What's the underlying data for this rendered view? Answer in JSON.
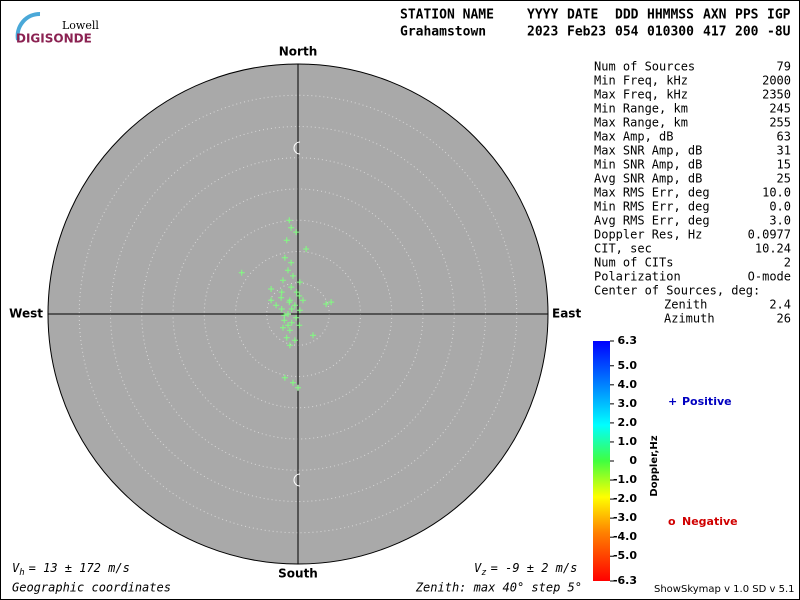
{
  "logo": {
    "top": "Lowell",
    "bottom": "DIGISONDE"
  },
  "header": {
    "columns": [
      {
        "label": "STATION NAME",
        "value": "Grahamstown"
      },
      {
        "label": "YYYY",
        "value": "2023"
      },
      {
        "label": "DATE",
        "value": "Feb23"
      },
      {
        "label": "DDD",
        "value": "054"
      },
      {
        "label": "HHMMSS",
        "value": "010300"
      },
      {
        "label": "AXN",
        "value": "417"
      },
      {
        "label": "PPS",
        "value": "200"
      },
      {
        "label": "IGP",
        "value": "-8U"
      }
    ]
  },
  "stats": [
    [
      "Num of Sources",
      "79"
    ],
    [
      "Min Freq, kHz",
      "2000"
    ],
    [
      "Max Freq, kHz",
      "2350"
    ],
    [
      "Min Range, km",
      "245"
    ],
    [
      "Max Range, km",
      "255"
    ],
    [
      "Max Amp, dB",
      "63"
    ],
    [
      "Max SNR Amp, dB",
      "31"
    ],
    [
      "Min SNR Amp, dB",
      "15"
    ],
    [
      "Avg SNR Amp, dB",
      "25"
    ],
    [
      "Max RMS Err, deg",
      "10.0"
    ],
    [
      "Min RMS Err, deg",
      "0.0"
    ],
    [
      "Avg RMS Err, deg",
      "3.0"
    ],
    [
      "Doppler Res, Hz",
      "0.0977"
    ],
    [
      "CIT, sec",
      "10.24"
    ],
    [
      "Num of CITs",
      "2"
    ],
    [
      "Polarization",
      "O-mode"
    ]
  ],
  "center": {
    "title": "Center of Sources, deg:",
    "rows": [
      [
        "Zenith",
        "2.4"
      ],
      [
        "Azimuth",
        "26"
      ]
    ]
  },
  "chart_data": {
    "type": "scatter",
    "directions": {
      "north": "North",
      "south": "South",
      "east": "East",
      "west": "West"
    },
    "series": [
      {
        "name": "Positive",
        "color": "#80ff80",
        "x": [
          -1.4,
          -1.1,
          -1.8,
          -0.3,
          1.3,
          -2.1,
          -1.1,
          -1.6,
          -9.0,
          -0.8,
          -2.4,
          0.3,
          -4.3,
          -1.1,
          -0.2,
          -2.7,
          0.2,
          -1.4,
          -0.5,
          -2.6,
          0.3,
          -1.6,
          -0.3,
          -2.2,
          -1.0,
          0.2,
          -2.4,
          -1.3,
          2.4,
          -1.8,
          -0.5,
          -1.3,
          -2.1,
          -0.8,
          0,
          5.3,
          4.5,
          -4.3,
          -3.5,
          0.8,
          -2.6,
          -1.3,
          -2.2,
          -1.0,
          -1.6
        ],
        "values": [
          15.0,
          13.8,
          11.8,
          13.1,
          10.4,
          9.0,
          8.2,
          7.0,
          6.6,
          6.1,
          5.4,
          5.1,
          4.0,
          4.3,
          3.5,
          2.6,
          2.9,
          1.9,
          1.4,
          0.8,
          0.6,
          0,
          -0.6,
          -1.0,
          -1.4,
          -1.8,
          -2.2,
          -2.6,
          -3.4,
          -3.8,
          -4.2,
          -5.0,
          -10.2,
          -11.0,
          -11.8,
          1.9,
          1.6,
          2.2,
          1.4,
          2.2,
          3.5,
          2.2,
          -0.2,
          0.8,
          -1.8
        ]
      }
    ],
    "rlim": [
      0,
      40
    ],
    "rticks": [
      5,
      10,
      15,
      20,
      25,
      30,
      35,
      40
    ],
    "legend": [
      {
        "symbol": "+",
        "label": "Positive",
        "color": "#0000c0"
      },
      {
        "symbol": "o",
        "label": "Negative",
        "color": "#d00000"
      }
    ],
    "colorbar": {
      "label": "Doppler,Hz",
      "lim": [
        -6.3,
        6.3
      ],
      "ticks": [
        6.3,
        {
          "value": 5,
          "label": "5.0"
        },
        {
          "value": 4,
          "label": "4.0"
        },
        {
          "value": 3,
          "label": "3.0"
        },
        {
          "value": 2,
          "label": "2.0"
        },
        {
          "value": 1,
          "label": "1.0"
        },
        0,
        {
          "value": -1,
          "label": "-1.0"
        },
        {
          "value": -2,
          "label": "-2.0"
        },
        {
          "value": -3,
          "label": "-3.0"
        },
        {
          "value": -4,
          "label": "-4.0"
        },
        {
          "value": -5,
          "label": "-5.0"
        },
        -6.3
      ]
    }
  },
  "footer": {
    "vh": {
      "symbol": "V",
      "sub": "h",
      "text": "= 13 ± 172 m/s"
    },
    "vz": {
      "symbol": "V",
      "sub": "z",
      "text": "= -9 ± 2 m/s"
    },
    "coords": "Geographic coordinates",
    "zenith": "Zenith: max 40°  step 5°",
    "version": "ShowSkymap v 1.0  SD v 5.1"
  }
}
